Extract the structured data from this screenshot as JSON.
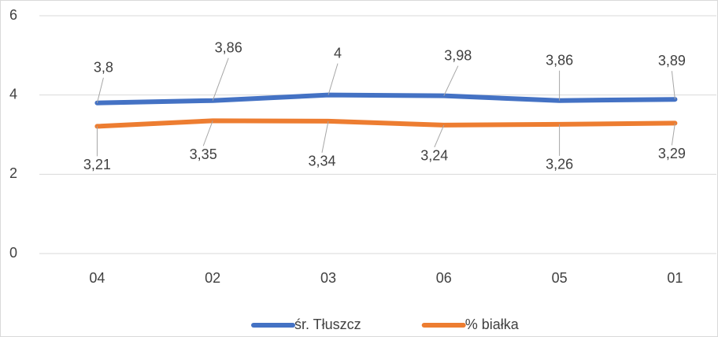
{
  "chart_data": {
    "type": "line",
    "categories": [
      "04",
      "02",
      "03",
      "06",
      "05",
      "01"
    ],
    "series": [
      {
        "name": "śr. Tłuszcz",
        "color": "#4472c4",
        "values": [
          3.8,
          3.86,
          4,
          3.98,
          3.86,
          3.89
        ],
        "value_labels": [
          "3,8",
          "3,86",
          "4",
          "3,98",
          "3,86",
          "3,89"
        ]
      },
      {
        "name": "% białka",
        "color": "#ed7d31",
        "values": [
          3.21,
          3.35,
          3.34,
          3.24,
          3.26,
          3.29
        ],
        "value_labels": [
          "3,21",
          "3,35",
          "3,34",
          "3,24",
          "3,26",
          "3,29"
        ]
      }
    ],
    "ylim": [
      0,
      6
    ],
    "yticks": [
      0,
      2,
      4,
      6
    ],
    "grid": true,
    "legend": "bottom"
  }
}
